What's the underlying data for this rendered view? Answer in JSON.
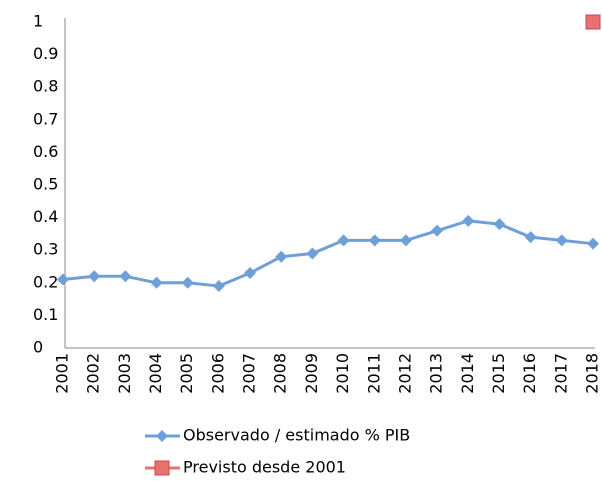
{
  "chart_data": {
    "type": "line",
    "categories": [
      "2001",
      "2002",
      "2003",
      "2004",
      "2005",
      "2006",
      "2007",
      "2008",
      "2009",
      "2010",
      "2011",
      "2012",
      "2013",
      "2014",
      "2015",
      "2016",
      "2017",
      "2018"
    ],
    "series": [
      {
        "name": "Observado / estimado % PIB",
        "color": "#6f9fd8",
        "marker": "diamond",
        "values": [
          0.21,
          0.22,
          0.22,
          0.2,
          0.2,
          0.19,
          0.23,
          0.28,
          0.29,
          0.33,
          0.33,
          0.33,
          0.36,
          0.39,
          0.38,
          0.34,
          0.33,
          0.32
        ]
      },
      {
        "name": "Previsto desde 2001",
        "color": "#e8706e",
        "marker": "square",
        "values": [
          null,
          null,
          null,
          null,
          null,
          null,
          null,
          null,
          null,
          null,
          null,
          null,
          null,
          null,
          null,
          null,
          null,
          1
        ]
      }
    ],
    "ylim": [
      0,
      1
    ],
    "yticks": [
      0,
      0.1,
      0.2,
      0.3,
      0.4,
      0.5,
      0.6,
      0.7,
      0.8,
      0.9,
      1
    ],
    "grid": false,
    "legend": "bottom"
  }
}
